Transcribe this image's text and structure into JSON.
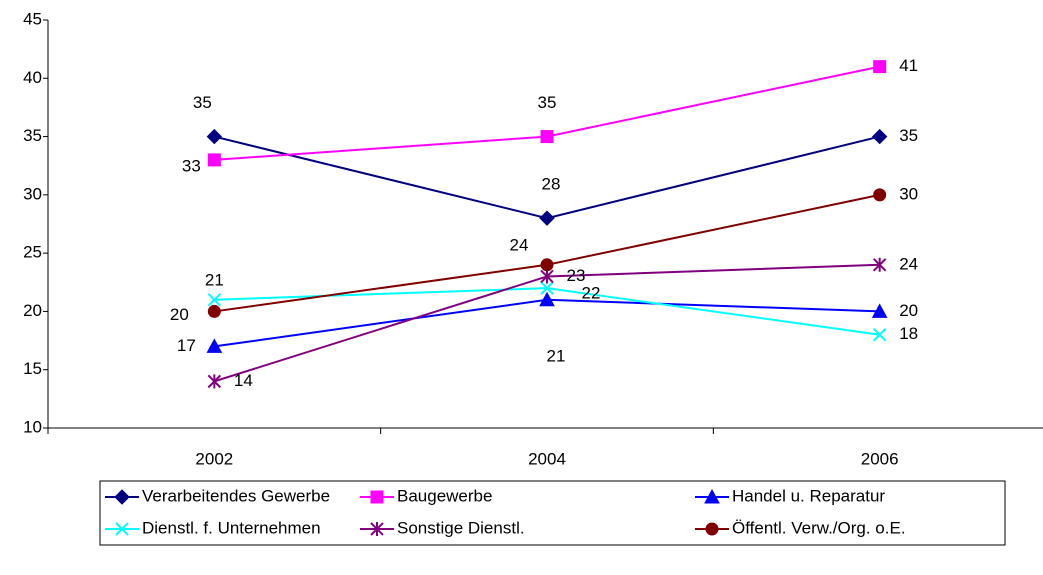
{
  "chart_data": {
    "type": "line",
    "categories": [
      "2002",
      "2004",
      "2006"
    ],
    "ylim": [
      10,
      45
    ],
    "yticks": [
      10,
      15,
      20,
      25,
      30,
      35,
      40,
      45
    ],
    "legend": "bottom",
    "series": [
      {
        "name": "Verarbeitendes Gewerbe",
        "color": "#000080",
        "marker": "diamond",
        "values": [
          35,
          28,
          35
        ]
      },
      {
        "name": "Baugewerbe",
        "color": "#ff00ff",
        "marker": "square",
        "values": [
          33,
          35,
          41
        ]
      },
      {
        "name": "Handel u. Reparatur",
        "color": "#0000ff",
        "marker": "triangle",
        "values": [
          17,
          21,
          20
        ]
      },
      {
        "name": "Dienstl. f. Unternehmen",
        "color": "#00ffff",
        "marker": "x",
        "values": [
          21,
          22,
          18
        ]
      },
      {
        "name": "Sonstige Dienstl.",
        "color": "#800080",
        "marker": "star",
        "values": [
          14,
          23,
          24
        ]
      },
      {
        "name": "Öffentl. Verw./Org. o.E.",
        "color": "#800000",
        "marker": "circle",
        "values": [
          20,
          24,
          30
        ]
      }
    ]
  }
}
